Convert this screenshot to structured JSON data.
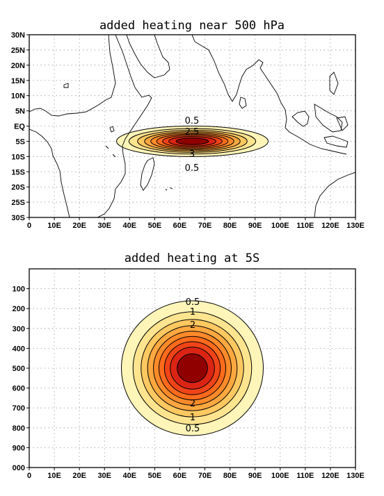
{
  "chart_data": [
    {
      "type": "heatmap",
      "title": "added heating near 500 hPa",
      "xlabel": "",
      "ylabel": "",
      "x_ticks": [
        "0",
        "10E",
        "20E",
        "30E",
        "40E",
        "50E",
        "60E",
        "70E",
        "80E",
        "90E",
        "100E",
        "110E",
        "120E",
        "130E"
      ],
      "y_ticks": [
        "30N",
        "25N",
        "20N",
        "15N",
        "10N",
        "5N",
        "EQ",
        "5S",
        "10S",
        "15S",
        "20S",
        "25S",
        "30S"
      ],
      "xlim": [
        0,
        130
      ],
      "ylim": [
        -30,
        30
      ],
      "grid": true,
      "center": {
        "lon": 65,
        "lat": -5
      },
      "peak_value": 5,
      "contour_levels": [
        0.5,
        1,
        1.5,
        2,
        2.5,
        3,
        3.5,
        4,
        4.5
      ],
      "contour_labels": [
        "0.5",
        "2.5",
        "3",
        "0.5"
      ],
      "colors": [
        "#fff5b8",
        "#ffe490",
        "#ffc860",
        "#ffa840",
        "#ff8a2a",
        "#ff6a1c",
        "#f04418",
        "#dc2414",
        "#b8080c",
        "#900000"
      ]
    },
    {
      "type": "heatmap",
      "title": "added heating at 5S",
      "xlabel": "",
      "ylabel": "",
      "x_ticks": [
        "0",
        "10E",
        "20E",
        "30E",
        "40E",
        "50E",
        "60E",
        "70E",
        "80E",
        "90E",
        "100E",
        "110E",
        "120E",
        "130E"
      ],
      "y_ticks": [
        "100",
        "200",
        "300",
        "400",
        "500",
        "600",
        "700",
        "800",
        "900",
        "000"
      ],
      "xlim": [
        0,
        130
      ],
      "ylim": [
        1000,
        0
      ],
      "grid": true,
      "center": {
        "lon": 65,
        "pressure": 500
      },
      "peak_value": 5,
      "contour_levels": [
        0.5,
        1,
        1.5,
        2,
        2.5,
        3,
        3.5,
        4,
        4.5
      ],
      "contour_labels": [
        "0.5",
        "1",
        "2",
        "2",
        "1",
        "0.5"
      ],
      "colors": [
        "#fff5b8",
        "#ffe490",
        "#ffc860",
        "#ffa840",
        "#ff8a2a",
        "#ff6a1c",
        "#f04418",
        "#dc2414",
        "#b8080c",
        "#900000"
      ]
    }
  ]
}
